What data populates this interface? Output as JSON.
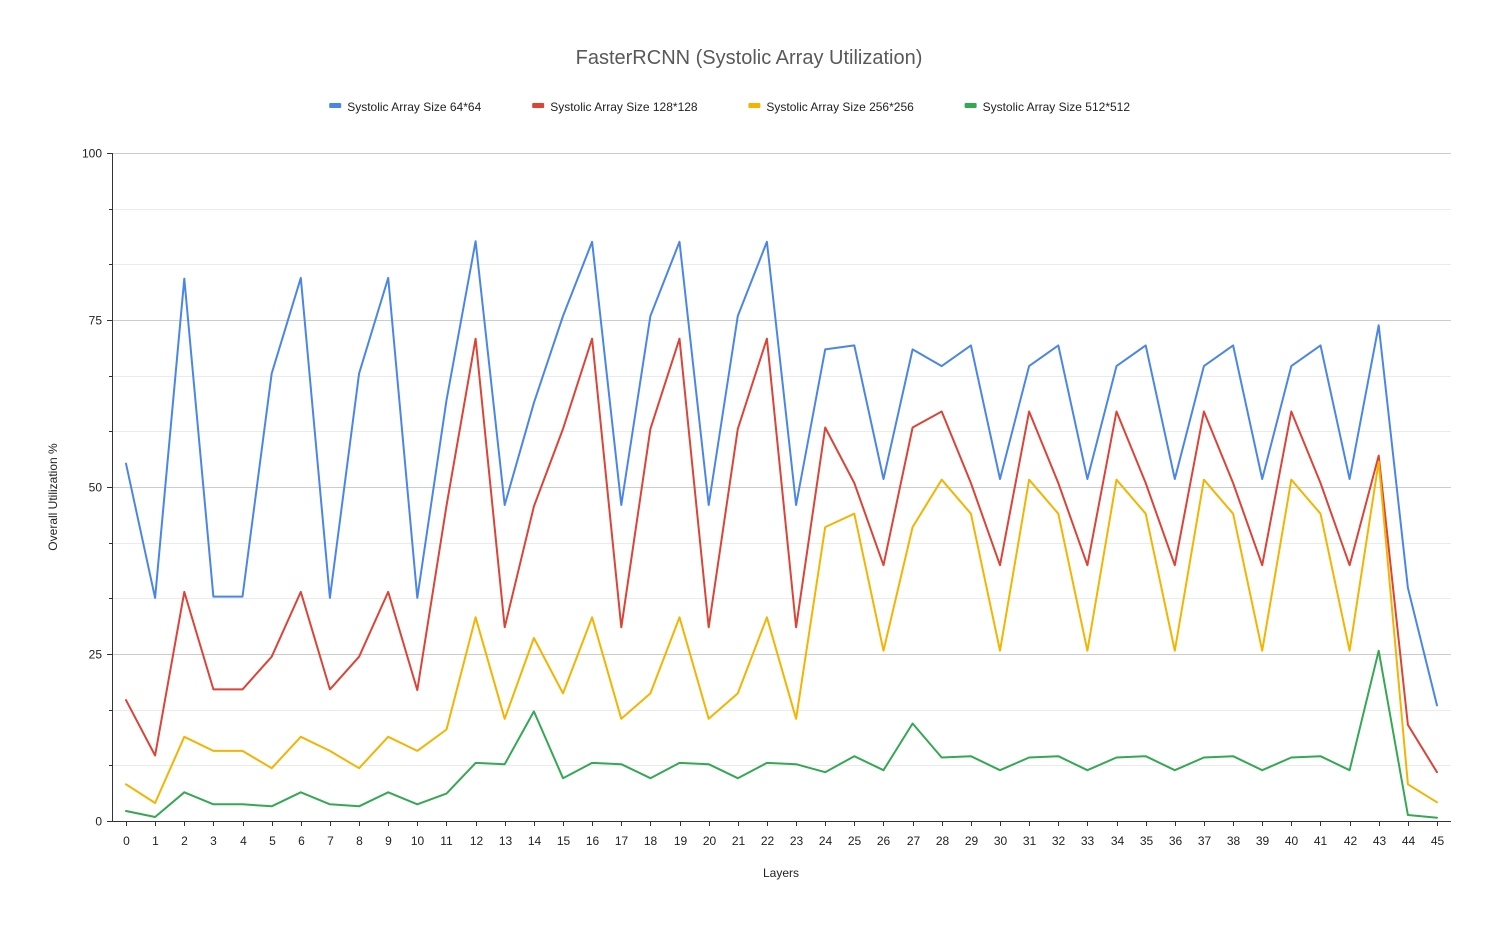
{
  "chart_data": {
    "type": "line",
    "title": "FasterRCNN (Systolic Array Utilization)",
    "xlabel": "Layers",
    "ylabel": "Overall Utilization %",
    "ylim": [
      0,
      100
    ],
    "yticks": [
      0,
      25,
      50,
      75,
      100
    ],
    "grid": true,
    "legend_position": "top",
    "categories": [
      "0",
      "1",
      "2",
      "3",
      "4",
      "5",
      "6",
      "7",
      "8",
      "9",
      "10",
      "11",
      "12",
      "13",
      "14",
      "15",
      "16",
      "17",
      "18",
      "19",
      "20",
      "21",
      "22",
      "23",
      "24",
      "25",
      "26",
      "27",
      "28",
      "29",
      "30",
      "31",
      "32",
      "33",
      "34",
      "35",
      "36",
      "37",
      "38",
      "39",
      "40",
      "41",
      "42",
      "43",
      "44",
      "45"
    ],
    "series": [
      {
        "name": "Systolic Array Size 64*64",
        "color": "#4a86e8",
        "values": [
          53.5,
          33.4,
          81.2,
          33.6,
          33.6,
          67,
          81.3,
          33.4,
          67,
          81.3,
          33.4,
          63,
          86.8,
          47.3,
          62.6,
          75.6,
          86.7,
          47.3,
          75.6,
          86.7,
          47.3,
          75.6,
          86.7,
          47.3,
          70.6,
          71.2,
          51.2,
          70.6,
          68.1,
          71.2,
          51.2,
          68.1,
          71.2,
          51.2,
          68.1,
          71.2,
          51.2,
          68.1,
          71.2,
          51.2,
          68.1,
          71.2,
          51.2,
          74.2,
          34.9,
          17.3
        ]
      },
      {
        "name": "Systolic Array Size 128*128",
        "color": "#db4437",
        "values": [
          18.1,
          9.8,
          34.3,
          19.7,
          19.7,
          24.6,
          34.3,
          19.7,
          24.6,
          34.3,
          19.6,
          47.2,
          72.2,
          29,
          47.1,
          58.7,
          72.2,
          29,
          58.7,
          72.2,
          29,
          58.7,
          72.2,
          29,
          58.9,
          50.6,
          38.3,
          58.9,
          61.3,
          50.6,
          38.3,
          61.3,
          50.6,
          38.3,
          61.3,
          50.6,
          38.3,
          61.3,
          50.6,
          38.3,
          61.3,
          50.6,
          38.3,
          54.7,
          14.4,
          7.3
        ]
      },
      {
        "name": "Systolic Array Size 256*256",
        "color": "#f4b400",
        "values": [
          5.5,
          2.7,
          12.6,
          10.5,
          10.5,
          7.9,
          12.6,
          10.5,
          7.9,
          12.6,
          10.5,
          13.7,
          30.5,
          15.3,
          27.4,
          19.1,
          30.5,
          15.3,
          19.1,
          30.5,
          15.3,
          19.1,
          30.5,
          15.3,
          44,
          46,
          25.5,
          44,
          51.1,
          46,
          25.5,
          51.1,
          46,
          25.5,
          51.1,
          46,
          25.5,
          51.1,
          46,
          25.5,
          51.1,
          46,
          25.5,
          53.8,
          5.5,
          2.8
        ]
      },
      {
        "name": "Systolic Array Size 512*512",
        "color": "#34a853",
        "values": [
          1.5,
          0.6,
          4.3,
          2.5,
          2.5,
          2.2,
          4.3,
          2.5,
          2.2,
          4.3,
          2.5,
          4.1,
          8.7,
          8.5,
          16.4,
          6.4,
          8.7,
          8.5,
          6.4,
          8.7,
          8.5,
          6.4,
          8.7,
          8.5,
          7.3,
          9.7,
          7.6,
          14.6,
          9.5,
          9.7,
          7.6,
          9.5,
          9.7,
          7.6,
          9.5,
          9.7,
          7.6,
          9.5,
          9.7,
          7.6,
          9.5,
          9.7,
          7.6,
          25.5,
          0.9,
          0.5
        ]
      }
    ]
  }
}
